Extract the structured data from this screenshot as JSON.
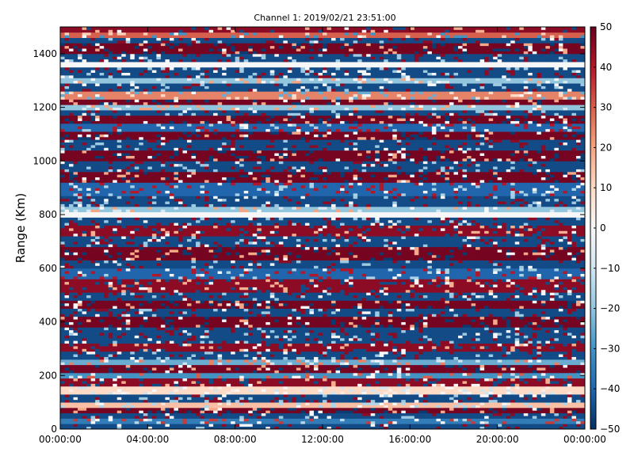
{
  "chart_data": {
    "type": "heatmap",
    "title": "Channel 1: 2019/02/21 23:51:00",
    "xlabel": "",
    "ylabel": "Range (Km)",
    "x_ticks": [
      "00:00:00",
      "04:00:00",
      "08:00:00",
      "12:00:00",
      "16:00:00",
      "20:00:00",
      "00:00:00"
    ],
    "x_range_hours": [
      0,
      24
    ],
    "y_ticks": [
      0,
      200,
      400,
      600,
      800,
      1000,
      1200,
      1400
    ],
    "ylim": [
      0,
      1500
    ],
    "colorbar": {
      "colormap": "RdBu_r",
      "range": [
        -50,
        50
      ],
      "ticks": [
        50,
        40,
        30,
        20,
        10,
        0,
        -10,
        -20,
        -30,
        -40,
        -50
      ],
      "tick_labels": [
        "50",
        "40",
        "30",
        "20",
        "10",
        "0",
        "−10",
        "−20",
        "−30",
        "−40",
        "−50"
      ]
    },
    "grid": false,
    "range_bands": [
      {
        "from": 0,
        "to": 20,
        "value": -45
      },
      {
        "from": 20,
        "to": 45,
        "value": -35
      },
      {
        "from": 45,
        "to": 60,
        "value": -45
      },
      {
        "from": 60,
        "to": 80,
        "value": 48
      },
      {
        "from": 80,
        "to": 100,
        "value": 15
      },
      {
        "from": 100,
        "to": 130,
        "value": -45
      },
      {
        "from": 130,
        "to": 160,
        "value": 10
      },
      {
        "from": 160,
        "to": 190,
        "value": 45
      },
      {
        "from": 190,
        "to": 210,
        "value": -30
      },
      {
        "from": 210,
        "to": 240,
        "value": 48
      },
      {
        "from": 240,
        "to": 260,
        "value": -25
      },
      {
        "from": 260,
        "to": 290,
        "value": -45
      },
      {
        "from": 290,
        "to": 320,
        "value": 45
      },
      {
        "from": 320,
        "to": 380,
        "value": -45
      },
      {
        "from": 380,
        "to": 420,
        "value": 48
      },
      {
        "from": 420,
        "to": 450,
        "value": -45
      },
      {
        "from": 450,
        "to": 480,
        "value": 48
      },
      {
        "from": 480,
        "to": 510,
        "value": -45
      },
      {
        "from": 510,
        "to": 560,
        "value": 45
      },
      {
        "from": 560,
        "to": 600,
        "value": -40
      },
      {
        "from": 600,
        "to": 630,
        "value": -45
      },
      {
        "from": 630,
        "to": 680,
        "value": 48
      },
      {
        "from": 680,
        "to": 720,
        "value": -45
      },
      {
        "from": 720,
        "to": 760,
        "value": 45
      },
      {
        "from": 760,
        "to": 790,
        "value": -45
      },
      {
        "from": 790,
        "to": 810,
        "value": 0
      },
      {
        "from": 810,
        "to": 830,
        "value": -20
      },
      {
        "from": 830,
        "to": 870,
        "value": -45
      },
      {
        "from": 870,
        "to": 920,
        "value": -40
      },
      {
        "from": 920,
        "to": 960,
        "value": 48
      },
      {
        "from": 960,
        "to": 1000,
        "value": -45
      },
      {
        "from": 1000,
        "to": 1040,
        "value": 48
      },
      {
        "from": 1040,
        "to": 1080,
        "value": -45
      },
      {
        "from": 1080,
        "to": 1110,
        "value": 48
      },
      {
        "from": 1110,
        "to": 1140,
        "value": -40
      },
      {
        "from": 1140,
        "to": 1170,
        "value": 48
      },
      {
        "from": 1170,
        "to": 1190,
        "value": -45
      },
      {
        "from": 1190,
        "to": 1210,
        "value": -20
      },
      {
        "from": 1210,
        "to": 1230,
        "value": 48
      },
      {
        "from": 1230,
        "to": 1260,
        "value": 25
      },
      {
        "from": 1260,
        "to": 1290,
        "value": -45
      },
      {
        "from": 1290,
        "to": 1310,
        "value": -20
      },
      {
        "from": 1310,
        "to": 1350,
        "value": -45
      },
      {
        "from": 1350,
        "to": 1370,
        "value": 0
      },
      {
        "from": 1370,
        "to": 1400,
        "value": -45
      },
      {
        "from": 1400,
        "to": 1440,
        "value": 48
      },
      {
        "from": 1440,
        "to": 1460,
        "value": -45
      },
      {
        "from": 1460,
        "to": 1480,
        "value": 30
      },
      {
        "from": 1480,
        "to": 1500,
        "value": 45
      }
    ]
  }
}
